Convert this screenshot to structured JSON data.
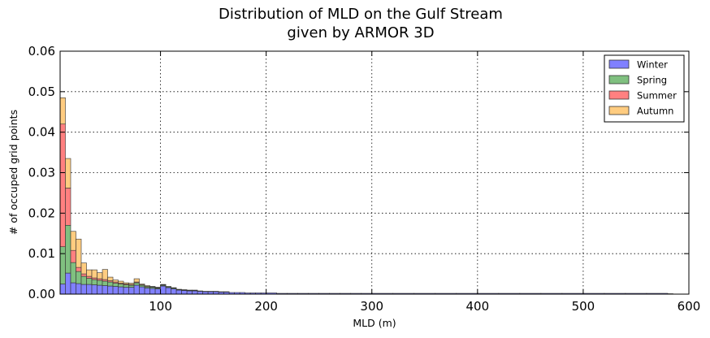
{
  "chart_data": {
    "type": "bar",
    "stacked": true,
    "title": "Distribution of MLD on the Gulf Stream",
    "subtitle": "given by ARMOR 3D",
    "xlabel": "MLD (m)",
    "ylabel": "# of occuped grid points",
    "xlim": [
      5,
      600
    ],
    "ylim": [
      0,
      0.06
    ],
    "xticks": [
      100,
      200,
      300,
      400,
      500,
      600
    ],
    "xtick_labels": [
      "100",
      "200",
      "300",
      "400",
      "500",
      "600"
    ],
    "yticks": [
      0,
      0.01,
      0.02,
      0.03,
      0.04,
      0.05,
      0.06
    ],
    "ytick_labels": [
      "0.00",
      "0.01",
      "0.02",
      "0.03",
      "0.04",
      "0.05",
      "0.06"
    ],
    "grid": true,
    "legend": "top-right",
    "bin_width": 5,
    "x": [
      5,
      10,
      15,
      20,
      25,
      30,
      35,
      40,
      45,
      50,
      55,
      60,
      65,
      70,
      75,
      80,
      85,
      90,
      95,
      100,
      105,
      110,
      115,
      120,
      125,
      130,
      135,
      140,
      145,
      150,
      155,
      160,
      165,
      170,
      175,
      180,
      185,
      190,
      195,
      200,
      210,
      220,
      230,
      240,
      250,
      260,
      270,
      280,
      290,
      300,
      320,
      340,
      360,
      380,
      400,
      420,
      440,
      460,
      480,
      500,
      520,
      540,
      560,
      580
    ],
    "series": [
      {
        "name": "Winter",
        "color": "#8080ff",
        "values": [
          0.0025,
          0.0052,
          0.0028,
          0.0026,
          0.0024,
          0.0024,
          0.0023,
          0.0022,
          0.0021,
          0.002,
          0.0019,
          0.0018,
          0.0017,
          0.0017,
          0.0022,
          0.0018,
          0.0015,
          0.0014,
          0.0013,
          0.002,
          0.0016,
          0.0013,
          0.001,
          0.0009,
          0.0008,
          0.0008,
          0.0007,
          0.0006,
          0.0006,
          0.0006,
          0.0005,
          0.0005,
          0.0004,
          0.0004,
          0.0004,
          0.0003,
          0.0003,
          0.0003,
          0.0003,
          0.0003,
          0.0002,
          0.0002,
          0.0002,
          0.0002,
          0.0002,
          0.0002,
          0.0002,
          0.0002,
          0.0002,
          0.0002,
          0.0002,
          0.0002,
          0.0002,
          0.0002,
          0.0002,
          0.0002,
          0.0002,
          0.0002,
          0.0002,
          0.0002,
          0.0002,
          0.0002,
          0.0002,
          0.0001
        ]
      },
      {
        "name": "Spring",
        "color": "#80c080",
        "values": [
          0.0092,
          0.0118,
          0.005,
          0.003,
          0.002,
          0.0015,
          0.0013,
          0.0012,
          0.0011,
          0.001,
          0.0008,
          0.0007,
          0.0006,
          0.0005,
          0.0006,
          0.0004,
          0.0003,
          0.0003,
          0.0002,
          0.0002,
          0.0002,
          0.0002,
          0.0001,
          0.0001,
          0.0001,
          0.0001,
          0.0001,
          0.0001,
          0.0001,
          0.0001,
          0.0001,
          0.0001,
          0,
          0,
          0,
          0,
          0,
          0,
          0,
          0,
          0,
          0,
          0,
          0,
          0,
          0,
          0,
          0,
          0,
          0,
          0,
          0,
          0,
          0,
          0,
          0,
          0,
          0,
          0,
          0,
          0,
          0,
          0,
          0
        ]
      },
      {
        "name": "Summer",
        "color": "#ff8080",
        "values": [
          0.0303,
          0.0092,
          0.003,
          0.001,
          0.0006,
          0.0005,
          0.0004,
          0.0004,
          0.0004,
          0.0003,
          0.0003,
          0.0002,
          0.0002,
          0.0002,
          0.0002,
          0.0001,
          0.0001,
          0.0001,
          0.0001,
          0.0001,
          0,
          0,
          0,
          0,
          0,
          0,
          0,
          0,
          0,
          0,
          0,
          0,
          0,
          0,
          0,
          0,
          0,
          0,
          0,
          0,
          0,
          0,
          0,
          0,
          0,
          0,
          0,
          0,
          0,
          0,
          0,
          0,
          0,
          0,
          0,
          0,
          0,
          0,
          0,
          0,
          0,
          0,
          0,
          0
        ]
      },
      {
        "name": "Autumn",
        "color": "#ffcc80",
        "values": [
          0.0065,
          0.0073,
          0.0047,
          0.007,
          0.0027,
          0.0016,
          0.002,
          0.0015,
          0.0025,
          0.0009,
          0.0005,
          0.0005,
          0.0003,
          0.0003,
          0.0008,
          0.0002,
          0.0002,
          0.0001,
          0.0001,
          0.0001,
          0.0001,
          0.0001,
          0.0001,
          0.0001,
          0.0001,
          0.0001,
          0,
          0,
          0,
          0,
          0,
          0,
          0,
          0,
          0,
          0,
          0,
          0,
          0,
          0,
          0,
          0,
          0,
          0,
          0,
          0,
          0,
          0,
          0,
          0,
          0,
          0,
          0,
          0,
          0,
          0,
          0,
          0,
          0,
          0,
          0,
          0,
          0,
          0
        ]
      }
    ]
  }
}
